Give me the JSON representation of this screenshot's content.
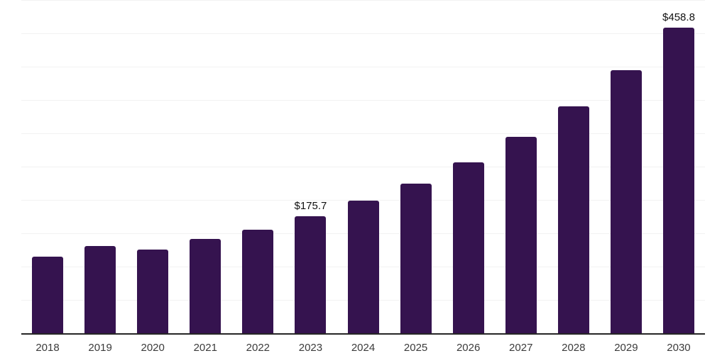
{
  "chart_data": {
    "type": "bar",
    "title": "",
    "xlabel": "",
    "ylabel": "",
    "categories": [
      "2018",
      "2019",
      "2020",
      "2021",
      "2022",
      "2023",
      "2024",
      "2025",
      "2026",
      "2027",
      "2028",
      "2029",
      "2030"
    ],
    "values": [
      114.9,
      130.9,
      125.5,
      141.5,
      155.3,
      175.7,
      198.5,
      225.0,
      256.4,
      294.7,
      340.4,
      394.7,
      458.8
    ],
    "data_labels": {
      "2023": "$175.7",
      "2030": "$458.8"
    },
    "ylim": [
      0,
      500
    ],
    "gridline_step": 50,
    "grid": true,
    "legend": false,
    "y_axis_tick_labels_visible": false,
    "colors": {
      "bar": "#35134f",
      "axis": "#262626",
      "gridline": "#f2f2f2",
      "data_label": "#111111",
      "tick_label": "#3b3b3b",
      "background": "#ffffff"
    }
  }
}
